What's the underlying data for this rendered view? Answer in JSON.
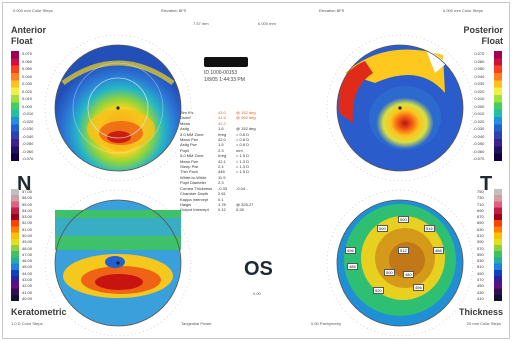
{
  "header": {
    "left_top": "0.000 mm Color Steps",
    "mid_left": "Elevation BFS",
    "mid_center_1": "7.57 mm",
    "mid_center_2": "0.000 mm",
    "mid_right": "Elevation BFS",
    "right_top": "0.000 mm Color Steps"
  },
  "panels": {
    "top_left": {
      "title_1": "Anterior",
      "title_2": "Float"
    },
    "top_right": {
      "title_1": "Posterior",
      "title_2": "Float"
    },
    "bottom_left": {
      "title_1": "Keratometric",
      "subtitle": "1.0 D Color Steps",
      "footer": "Tangential Power"
    },
    "bottom_right": {
      "title_1": "Thickness",
      "subtitle": "20 mm Color Steps",
      "footer": "0.50 Pachymetry"
    }
  },
  "orientation": {
    "nasal": "N",
    "temporal": "T",
    "eye": "OS"
  },
  "patient": {
    "id_line": "ID 1000-00153",
    "date_line": "1/8/05 1:44:33 PM"
  },
  "scales": {
    "top_left": [
      "0.070",
      "0.060",
      "0.050",
      "0.040",
      "0.030",
      "0.020",
      "0.010",
      "0.000",
      "-0.010",
      "-0.020",
      "-0.030",
      "-0.040",
      "-0.050",
      "-0.060",
      "-0.070"
    ],
    "top_right": [
      "0.070",
      "0.060",
      "0.050",
      "0.040",
      "0.030",
      "0.020",
      "0.010",
      "0.000",
      "-0.010",
      "-0.020",
      "-0.030",
      "-0.040",
      "-0.050",
      "-0.060",
      "-0.070"
    ],
    "bottom_left": [
      "57.00",
      "56.00",
      "55.00",
      "54.00",
      "53.00",
      "52.00",
      "51.00",
      "50.00",
      "49.00",
      "48.00",
      "47.00",
      "46.00",
      "45.00",
      "44.00",
      "43.00",
      "42.00",
      "41.00",
      "40.00"
    ],
    "bottom_right": [
      "750",
      "730",
      "710",
      "690",
      "670",
      "650",
      "630",
      "610",
      "590",
      "570",
      "550",
      "530",
      "510",
      "490",
      "470",
      "450",
      "430",
      "410"
    ]
  },
  "center_table": [
    {
      "label": "Sim K's",
      "value": "43.0",
      "extra": "@ 152 deg"
    },
    {
      "label": "Dsmd",
      "value": "41.4",
      "extra": "@ 062 deg"
    },
    {
      "label": "Mean",
      "value": "42.2",
      "extra": ""
    },
    {
      "label": "Astig",
      "value": "1.6",
      "extra": "@ 152 deg"
    },
    {
      "label": "3.0 MM Zone",
      "value": "Irreg",
      "extra": "= 0.8 D"
    },
    {
      "label": "Mean Pwr",
      "value": "42.0",
      "extra": "= 0.8 D"
    },
    {
      "label": "Astig Pwr",
      "value": "1.5",
      "extra": "= 0.8 D"
    },
    {
      "label": "Pupil",
      "value": "2.3",
      "extra": "mm"
    },
    {
      "label": "5.0 MM Zone",
      "value": "Irreg",
      "extra": "= 1.5 D"
    },
    {
      "label": "Mean Pwr",
      "value": "42.1",
      "extra": "= 1.3 D"
    },
    {
      "label": "Steep Pwr",
      "value": "2.4",
      "extra": "= 1.3 D"
    },
    {
      "label": "Thin Pach",
      "value": "448",
      "extra": "= 1.5 D"
    },
    {
      "label": "White-to-White",
      "value": "11.9",
      "extra": ""
    },
    {
      "label": "Pupil Diameter",
      "value": "2.3",
      "extra": ""
    },
    {
      "label": "Cornea Thickness",
      "value": "-0.33",
      "extra": "-0.04 -"
    },
    {
      "label": "Chamber Depth",
      "value": "2.61",
      "extra": ""
    },
    {
      "label": "Kappa Intercept",
      "value": "0.1",
      "extra": ""
    },
    {
      "label": "Haigis",
      "value": "1.78",
      "extra": "@ 325.27"
    },
    {
      "label": "Output Intercept",
      "value": "0.12",
      "extra": "0.28"
    }
  ],
  "footnote": "0.00",
  "pachy_values": [
    "500",
    "516",
    "500",
    "496",
    "512",
    "488",
    "488",
    "500",
    "480",
    "496",
    "520"
  ],
  "colors": {
    "scale_top": [
      "#a00050",
      "#d01040",
      "#ff4020",
      "#ff8020",
      "#ffc020",
      "#f0f040",
      "#a0e040",
      "#40d060",
      "#20c0a0",
      "#2090e0",
      "#2060d0",
      "#3040b0",
      "#402090",
      "#201060",
      "#100040"
    ],
    "scale_bottom": [
      "#c0c0c0",
      "#d0a0a0",
      "#e06080",
      "#c02040",
      "#a00020",
      "#ff4000",
      "#ff8000",
      "#ffc000",
      "#e0e020",
      "#90d040",
      "#40c060",
      "#20b0a0",
      "#2080e0",
      "#1040c0",
      "#3020a0",
      "#601080",
      "#301050",
      "#101030"
    ]
  }
}
